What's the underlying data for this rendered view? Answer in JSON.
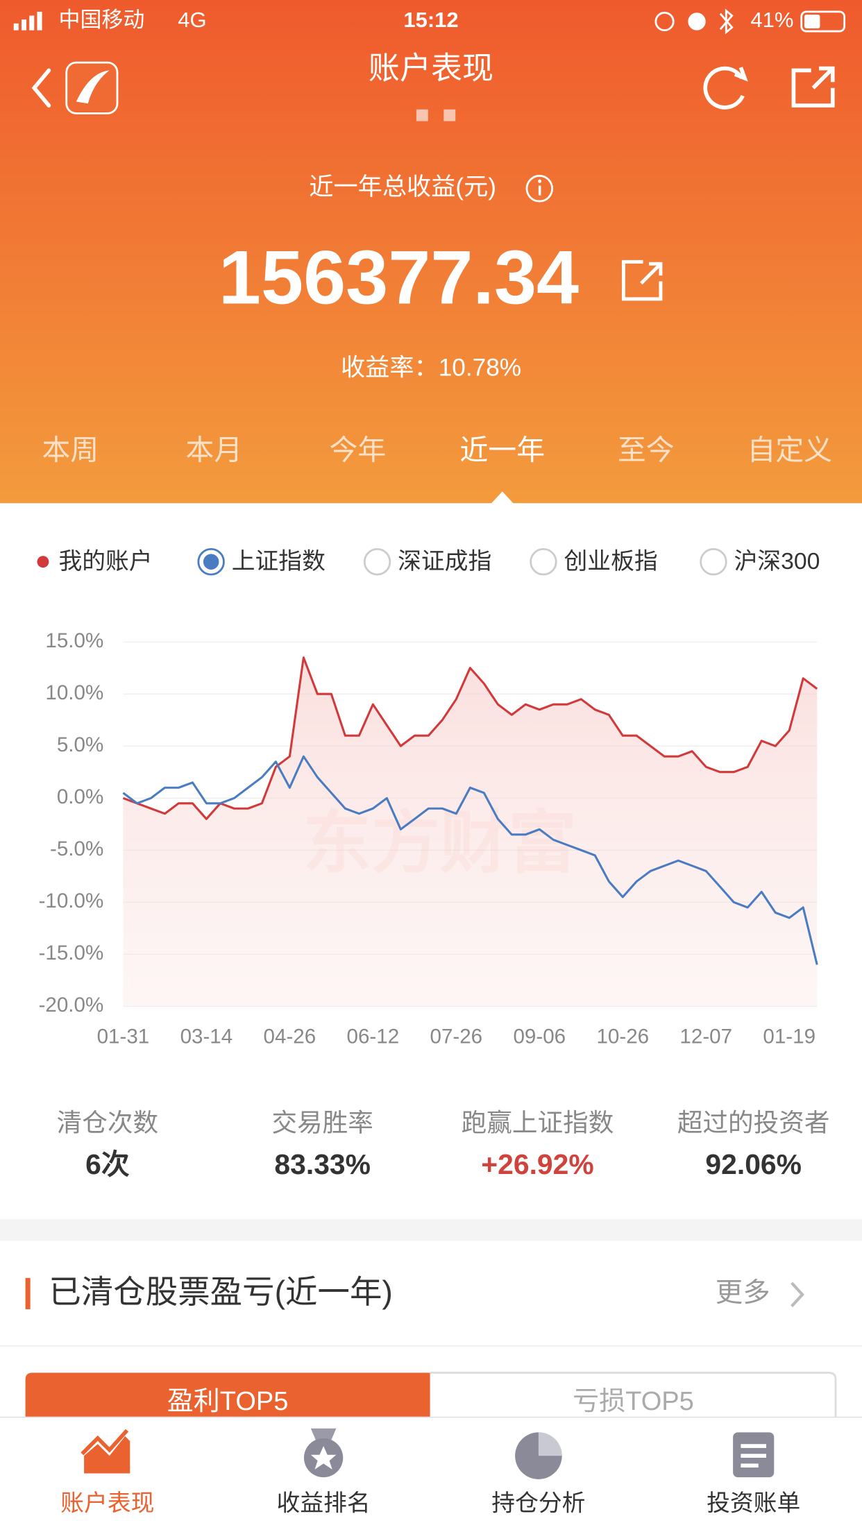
{
  "status_bar": {
    "carrier": "中国移动",
    "network": "4G",
    "time": "15:12",
    "battery": "41%"
  },
  "header": {
    "title": "账户表现"
  },
  "summary": {
    "label": "近一年总收益(元)",
    "amount": "156377.34",
    "rate": "收益率：10.78%"
  },
  "period_tabs": {
    "items": [
      "本周",
      "本月",
      "今年",
      "近一年",
      "至今",
      "自定义"
    ],
    "active": 3
  },
  "other_indices": [
    "深证成指",
    "创业板指",
    "沪深300"
  ],
  "chart_data": {
    "type": "line",
    "watermark": "东方财富",
    "categories": [
      "01-31",
      null,
      null,
      null,
      null,
      null,
      "03-14",
      null,
      null,
      null,
      null,
      null,
      "04-26",
      null,
      null,
      null,
      null,
      null,
      "06-12",
      null,
      null,
      null,
      null,
      null,
      "07-26",
      null,
      null,
      null,
      null,
      null,
      "09-06",
      null,
      null,
      null,
      null,
      null,
      "10-26",
      null,
      null,
      null,
      null,
      null,
      "12-07",
      null,
      null,
      null,
      null,
      null,
      "01-19",
      null,
      null
    ],
    "series": [
      {
        "name": "我的账户",
        "color": "#d2393a",
        "values": [
          0,
          -0.5,
          -1,
          -1.5,
          -0.5,
          -0.5,
          -2,
          -0.5,
          -1,
          -1,
          -0.5,
          3,
          4,
          13.5,
          10,
          10,
          6,
          6,
          9,
          7,
          5,
          6,
          6,
          7.5,
          9.5,
          12.5,
          11,
          9,
          8,
          9,
          8.5,
          9,
          9,
          9.5,
          8.5,
          8,
          6,
          6,
          5,
          4,
          4,
          4.5,
          3,
          2.5,
          2.5,
          3,
          5.5,
          5,
          6.5,
          11.5,
          10.5
        ]
      },
      {
        "name": "上证指数",
        "color": "#4a7cc2",
        "values": [
          0.5,
          -0.5,
          0,
          1,
          1,
          1.5,
          -0.5,
          -0.5,
          0,
          1,
          2,
          3.5,
          1,
          4,
          2,
          0.5,
          -1,
          -1.5,
          -1,
          0,
          -3,
          -2,
          -1,
          -1,
          -1.5,
          1,
          0.5,
          -2,
          -3.5,
          -3.5,
          -3,
          -4,
          -4.5,
          -5,
          -5.5,
          -8,
          -9.5,
          -8,
          -7,
          -6.5,
          -6,
          -6.5,
          -7,
          -8.5,
          -10,
          -10.5,
          -9,
          -11,
          -11.5,
          -10.5,
          -16
        ]
      }
    ],
    "ylim": [
      -20,
      15
    ],
    "yticks": [
      {
        "value": 15,
        "label": "15.0%"
      },
      {
        "value": 10,
        "label": "10.0%"
      },
      {
        "value": 5,
        "label": "5.0%"
      },
      {
        "value": 0,
        "label": "0.0%"
      },
      {
        "value": -5,
        "label": "-5.0%"
      },
      {
        "value": -10,
        "label": "-10.0%"
      },
      {
        "value": -15,
        "label": "-15.0%"
      },
      {
        "value": -20,
        "label": "-20.0%"
      }
    ],
    "grid": true
  },
  "stats": [
    {
      "label": "清仓次数",
      "value": "6次"
    },
    {
      "label": "交易胜率",
      "value": "83.33%"
    },
    {
      "label": "跑赢上证指数",
      "value": "+26.92%"
    },
    {
      "label": "超过的投资者",
      "value": "92.06%"
    }
  ],
  "section": {
    "title": "已清仓股票盈亏(近一年)",
    "more": "更多",
    "tabs": [
      "盈利TOP5",
      "亏损TOP5"
    ]
  },
  "bottom_nav": [
    "账户表现",
    "收益排名",
    "持仓分析",
    "投资账单"
  ]
}
